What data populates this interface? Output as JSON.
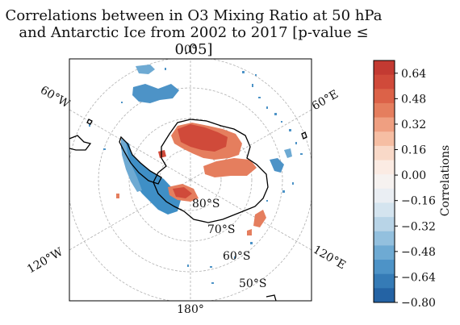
{
  "title_line1": "Correlations between in O3 Mixing Ratio at 50 hPa",
  "title_line2": "and Antarctic Ice from 2002 to 2017 [p-value ≤ 0.05]",
  "map": {
    "longitude_labels": {
      "top": "0°",
      "bottom": "180°",
      "upper_left": "60°W",
      "upper_right": "60°E",
      "lower_left": "120°W",
      "lower_right": "120°E"
    },
    "latitude_labels": [
      "80°S",
      "70°S",
      "60°S",
      "50°S"
    ],
    "gridlines": "dashed"
  },
  "colorbar": {
    "label": "Correlations",
    "tick_labels": [
      "0.64",
      "0.48",
      "0.32",
      "0.16",
      "0.00",
      "−0.16",
      "−0.32",
      "−0.48",
      "−0.64",
      "−0.80"
    ],
    "range": [
      -0.8,
      0.72
    ],
    "colors_top_to_bottom": [
      "#c33a32",
      "#d04a3a",
      "#dc6248",
      "#e57e5e",
      "#ef9f81",
      "#f6bea3",
      "#f9d9c8",
      "#fbebe3",
      "#f6f2f0",
      "#eaeef3",
      "#d4e4ef",
      "#b8d4e7",
      "#93c0de",
      "#6eaad3",
      "#4d93c7",
      "#357bb6",
      "#2463a4"
    ]
  },
  "colors": {
    "positive": "#d9543f",
    "negative": "#3f8fc6",
    "coast": "#000000",
    "grid": "#b0b0b0"
  }
}
